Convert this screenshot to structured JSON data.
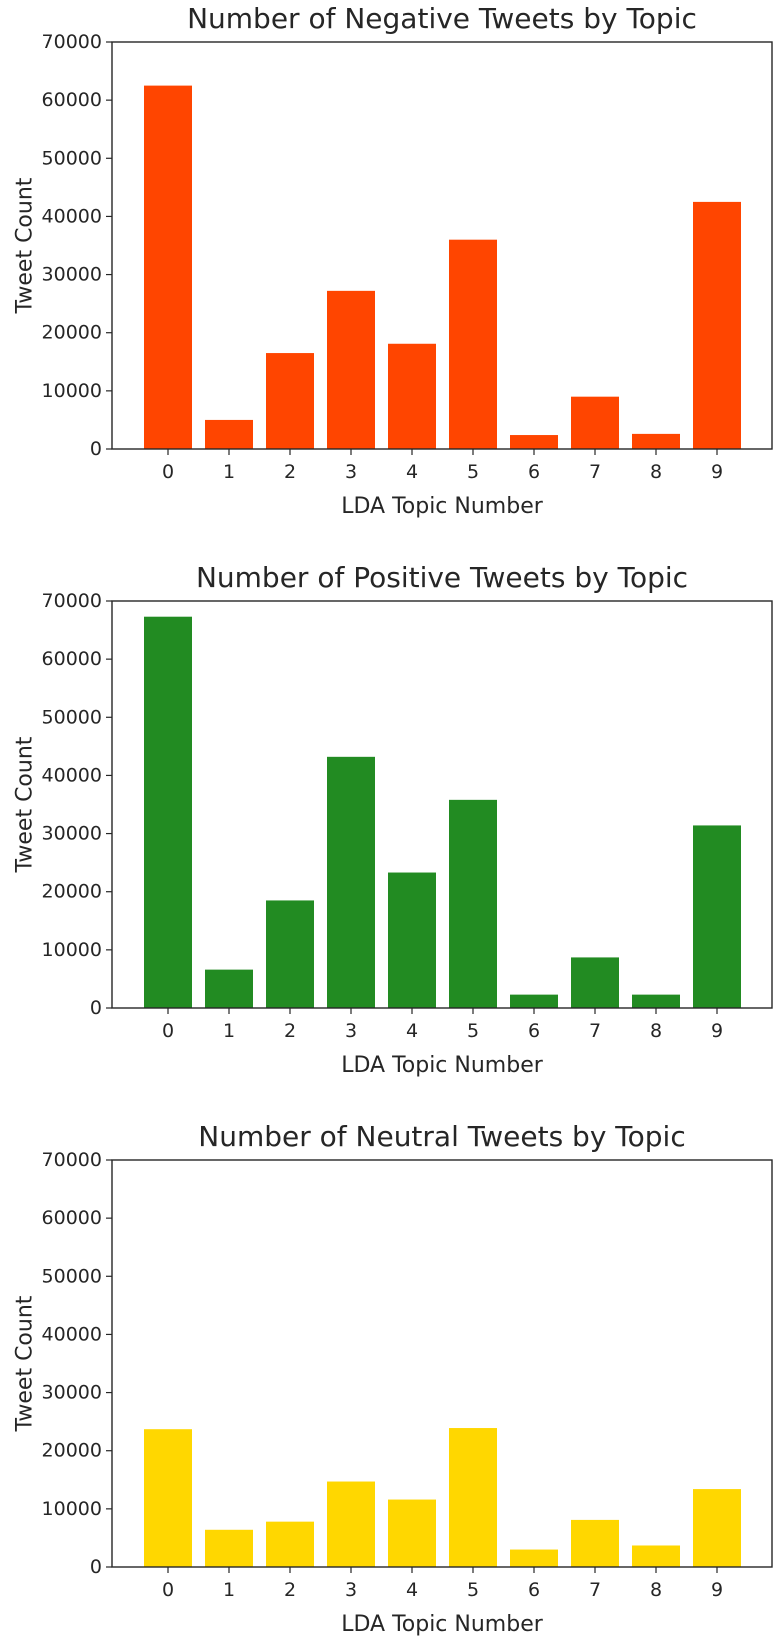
{
  "chart_data": [
    {
      "type": "bar",
      "title": "Number of Negative Tweets by Topic",
      "xlabel": "LDA Topic Number",
      "ylabel": "Tweet Count",
      "categories": [
        "0",
        "1",
        "2",
        "3",
        "4",
        "5",
        "6",
        "7",
        "8",
        "9"
      ],
      "values": [
        62500,
        5000,
        16500,
        27200,
        18100,
        36000,
        2400,
        9000,
        2600,
        42500
      ],
      "ylim": [
        0,
        70000
      ],
      "yticks": [
        0,
        10000,
        20000,
        30000,
        40000,
        50000,
        60000,
        70000
      ],
      "color": "#ff4500",
      "grid": false
    },
    {
      "type": "bar",
      "title": "Number of Positive Tweets by Topic",
      "xlabel": "LDA Topic Number",
      "ylabel": "Tweet Count",
      "categories": [
        "0",
        "1",
        "2",
        "3",
        "4",
        "5",
        "6",
        "7",
        "8",
        "9"
      ],
      "values": [
        67300,
        6600,
        18500,
        43200,
        23300,
        35800,
        2300,
        8700,
        2300,
        31400
      ],
      "ylim": [
        0,
        70000
      ],
      "yticks": [
        0,
        10000,
        20000,
        30000,
        40000,
        50000,
        60000,
        70000
      ],
      "color": "#228b22",
      "grid": false
    },
    {
      "type": "bar",
      "title": "Number of Neutral Tweets by Topic",
      "xlabel": "LDA Topic Number",
      "ylabel": "Tweet Count",
      "categories": [
        "0",
        "1",
        "2",
        "3",
        "4",
        "5",
        "6",
        "7",
        "8",
        "9"
      ],
      "values": [
        23700,
        6400,
        7800,
        14700,
        11600,
        23900,
        3000,
        8100,
        3700,
        13400
      ],
      "ylim": [
        0,
        70000
      ],
      "yticks": [
        0,
        10000,
        20000,
        30000,
        40000,
        50000,
        60000,
        70000
      ],
      "color": "#ffd700",
      "grid": false
    }
  ]
}
